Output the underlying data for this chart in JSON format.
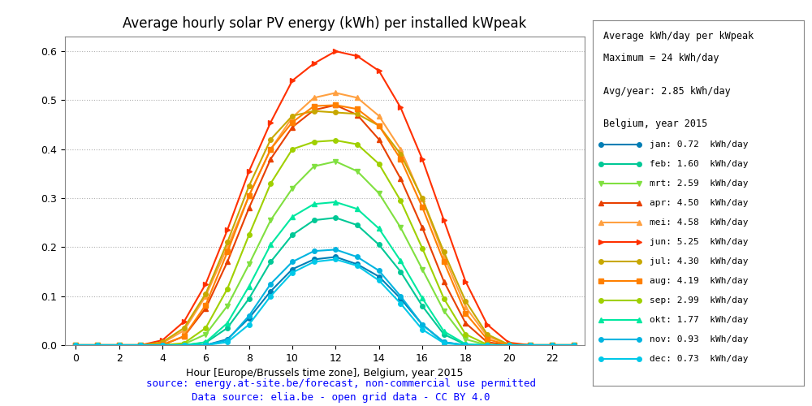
{
  "title": "Average hourly solar PV energy (kWh) per installed kWpeak",
  "xlabel": "Hour [Europe/Brussels time zone], Belgium, year 2015",
  "ylabel": "",
  "xlim": [
    -0.5,
    23.5
  ],
  "ylim": [
    0.0,
    0.63
  ],
  "yticks": [
    0.0,
    0.1,
    0.2,
    0.3,
    0.4,
    0.5,
    0.6
  ],
  "xticks": [
    0,
    2,
    4,
    6,
    8,
    10,
    12,
    14,
    16,
    18,
    20,
    22
  ],
  "footnote1": "source: energy.at-site.be/forecast, non-commercial use permitted",
  "footnote2": "Data source: elia.be - open grid data - CC BY 4.0",
  "legend_title_line1": "Average kWh/day per kWpeak",
  "legend_title_line2": "Maximum = 24 kWh/day",
  "legend_subtitle": "Avg/year: 2.85 kWh/day",
  "legend_group": "Belgium, year 2015",
  "months": [
    {
      "name": "jan",
      "kwh": "0.72",
      "color": "#007EB5",
      "marker": "o",
      "lw": 1.5
    },
    {
      "name": "feb",
      "kwh": "1.60",
      "color": "#00C896",
      "marker": "o",
      "lw": 1.5
    },
    {
      "name": "mrt",
      "kwh": "2.59",
      "color": "#80E040",
      "marker": "v",
      "lw": 1.5
    },
    {
      "name": "apr",
      "kwh": "4.50",
      "color": "#E84000",
      "marker": "^",
      "lw": 1.5
    },
    {
      "name": "mei",
      "kwh": "4.58",
      "color": "#FFA040",
      "marker": "^",
      "lw": 1.5
    },
    {
      "name": "jun",
      "kwh": "5.25",
      "color": "#FF3000",
      "marker": ">",
      "lw": 1.5
    },
    {
      "name": "jul",
      "kwh": "4.30",
      "color": "#C8A800",
      "marker": "o",
      "lw": 1.5
    },
    {
      "name": "aug",
      "kwh": "4.19",
      "color": "#FF8000",
      "marker": "s",
      "lw": 1.5
    },
    {
      "name": "sep",
      "kwh": "2.99",
      "color": "#A0D000",
      "marker": "o",
      "lw": 1.5
    },
    {
      "name": "okt",
      "kwh": "1.77",
      "color": "#00E8A0",
      "marker": "^",
      "lw": 1.5
    },
    {
      "name": "nov",
      "kwh": "0.93",
      "color": "#00B4E0",
      "marker": "o",
      "lw": 1.5
    },
    {
      "name": "dec",
      "kwh": "0.73",
      "color": "#00C8E8",
      "marker": "o",
      "lw": 1.5
    }
  ],
  "hourly_data": {
    "jan": [
      0.0,
      0.0,
      0.0,
      0.0,
      0.0,
      0.0,
      0.0,
      0.012,
      0.055,
      0.11,
      0.155,
      0.175,
      0.18,
      0.165,
      0.14,
      0.095,
      0.042,
      0.006,
      0.0,
      0.0,
      0.0,
      0.0,
      0.0,
      0.0
    ],
    "feb": [
      0.0,
      0.0,
      0.0,
      0.0,
      0.0,
      0.0,
      0.005,
      0.035,
      0.095,
      0.17,
      0.225,
      0.255,
      0.26,
      0.245,
      0.205,
      0.15,
      0.08,
      0.022,
      0.001,
      0.0,
      0.0,
      0.0,
      0.0,
      0.0
    ],
    "mrt": [
      0.0,
      0.0,
      0.0,
      0.0,
      0.0,
      0.002,
      0.022,
      0.08,
      0.165,
      0.255,
      0.32,
      0.365,
      0.375,
      0.355,
      0.31,
      0.24,
      0.155,
      0.07,
      0.012,
      0.0,
      0.0,
      0.0,
      0.0,
      0.0
    ],
    "apr": [
      0.0,
      0.0,
      0.0,
      0.0,
      0.0,
      0.018,
      0.075,
      0.17,
      0.28,
      0.38,
      0.445,
      0.48,
      0.49,
      0.47,
      0.42,
      0.34,
      0.24,
      0.13,
      0.045,
      0.006,
      0.0,
      0.0,
      0.0,
      0.0
    ],
    "mei": [
      0.0,
      0.0,
      0.0,
      0.0,
      0.004,
      0.03,
      0.1,
      0.2,
      0.305,
      0.4,
      0.465,
      0.505,
      0.515,
      0.505,
      0.468,
      0.4,
      0.298,
      0.182,
      0.078,
      0.018,
      0.001,
      0.0,
      0.0,
      0.0
    ],
    "jun": [
      0.0,
      0.0,
      0.0,
      0.0,
      0.01,
      0.048,
      0.125,
      0.235,
      0.355,
      0.455,
      0.54,
      0.575,
      0.6,
      0.59,
      0.56,
      0.485,
      0.38,
      0.255,
      0.13,
      0.042,
      0.005,
      0.0,
      0.0,
      0.0
    ],
    "jul": [
      0.0,
      0.0,
      0.0,
      0.0,
      0.006,
      0.035,
      0.105,
      0.21,
      0.325,
      0.42,
      0.468,
      0.478,
      0.475,
      0.472,
      0.448,
      0.39,
      0.3,
      0.19,
      0.09,
      0.022,
      0.001,
      0.0,
      0.0,
      0.0
    ],
    "aug": [
      0.0,
      0.0,
      0.0,
      0.0,
      0.001,
      0.018,
      0.082,
      0.19,
      0.305,
      0.4,
      0.455,
      0.488,
      0.49,
      0.482,
      0.448,
      0.38,
      0.282,
      0.17,
      0.065,
      0.012,
      0.0,
      0.0,
      0.0,
      0.0
    ],
    "sep": [
      0.0,
      0.0,
      0.0,
      0.0,
      0.0,
      0.004,
      0.035,
      0.115,
      0.225,
      0.33,
      0.4,
      0.415,
      0.418,
      0.41,
      0.37,
      0.295,
      0.198,
      0.095,
      0.022,
      0.001,
      0.0,
      0.0,
      0.0,
      0.0
    ],
    "okt": [
      0.0,
      0.0,
      0.0,
      0.0,
      0.0,
      0.0,
      0.006,
      0.045,
      0.12,
      0.205,
      0.262,
      0.288,
      0.292,
      0.278,
      0.238,
      0.172,
      0.096,
      0.028,
      0.002,
      0.0,
      0.0,
      0.0,
      0.0,
      0.0
    ],
    "nov": [
      0.0,
      0.0,
      0.0,
      0.0,
      0.0,
      0.0,
      0.0,
      0.01,
      0.06,
      0.125,
      0.17,
      0.192,
      0.195,
      0.18,
      0.152,
      0.1,
      0.042,
      0.006,
      0.0,
      0.0,
      0.0,
      0.0,
      0.0,
      0.0
    ],
    "dec": [
      0.0,
      0.0,
      0.0,
      0.0,
      0.0,
      0.0,
      0.0,
      0.006,
      0.042,
      0.1,
      0.148,
      0.17,
      0.175,
      0.162,
      0.132,
      0.085,
      0.032,
      0.004,
      0.0,
      0.0,
      0.0,
      0.0,
      0.0,
      0.0
    ]
  },
  "bg_color": "#ffffff",
  "grid_color": "#b0b0b0",
  "footnote_color": "#0000FF",
  "figsize": [
    10.0,
    5.0
  ],
  "dpi": 100
}
